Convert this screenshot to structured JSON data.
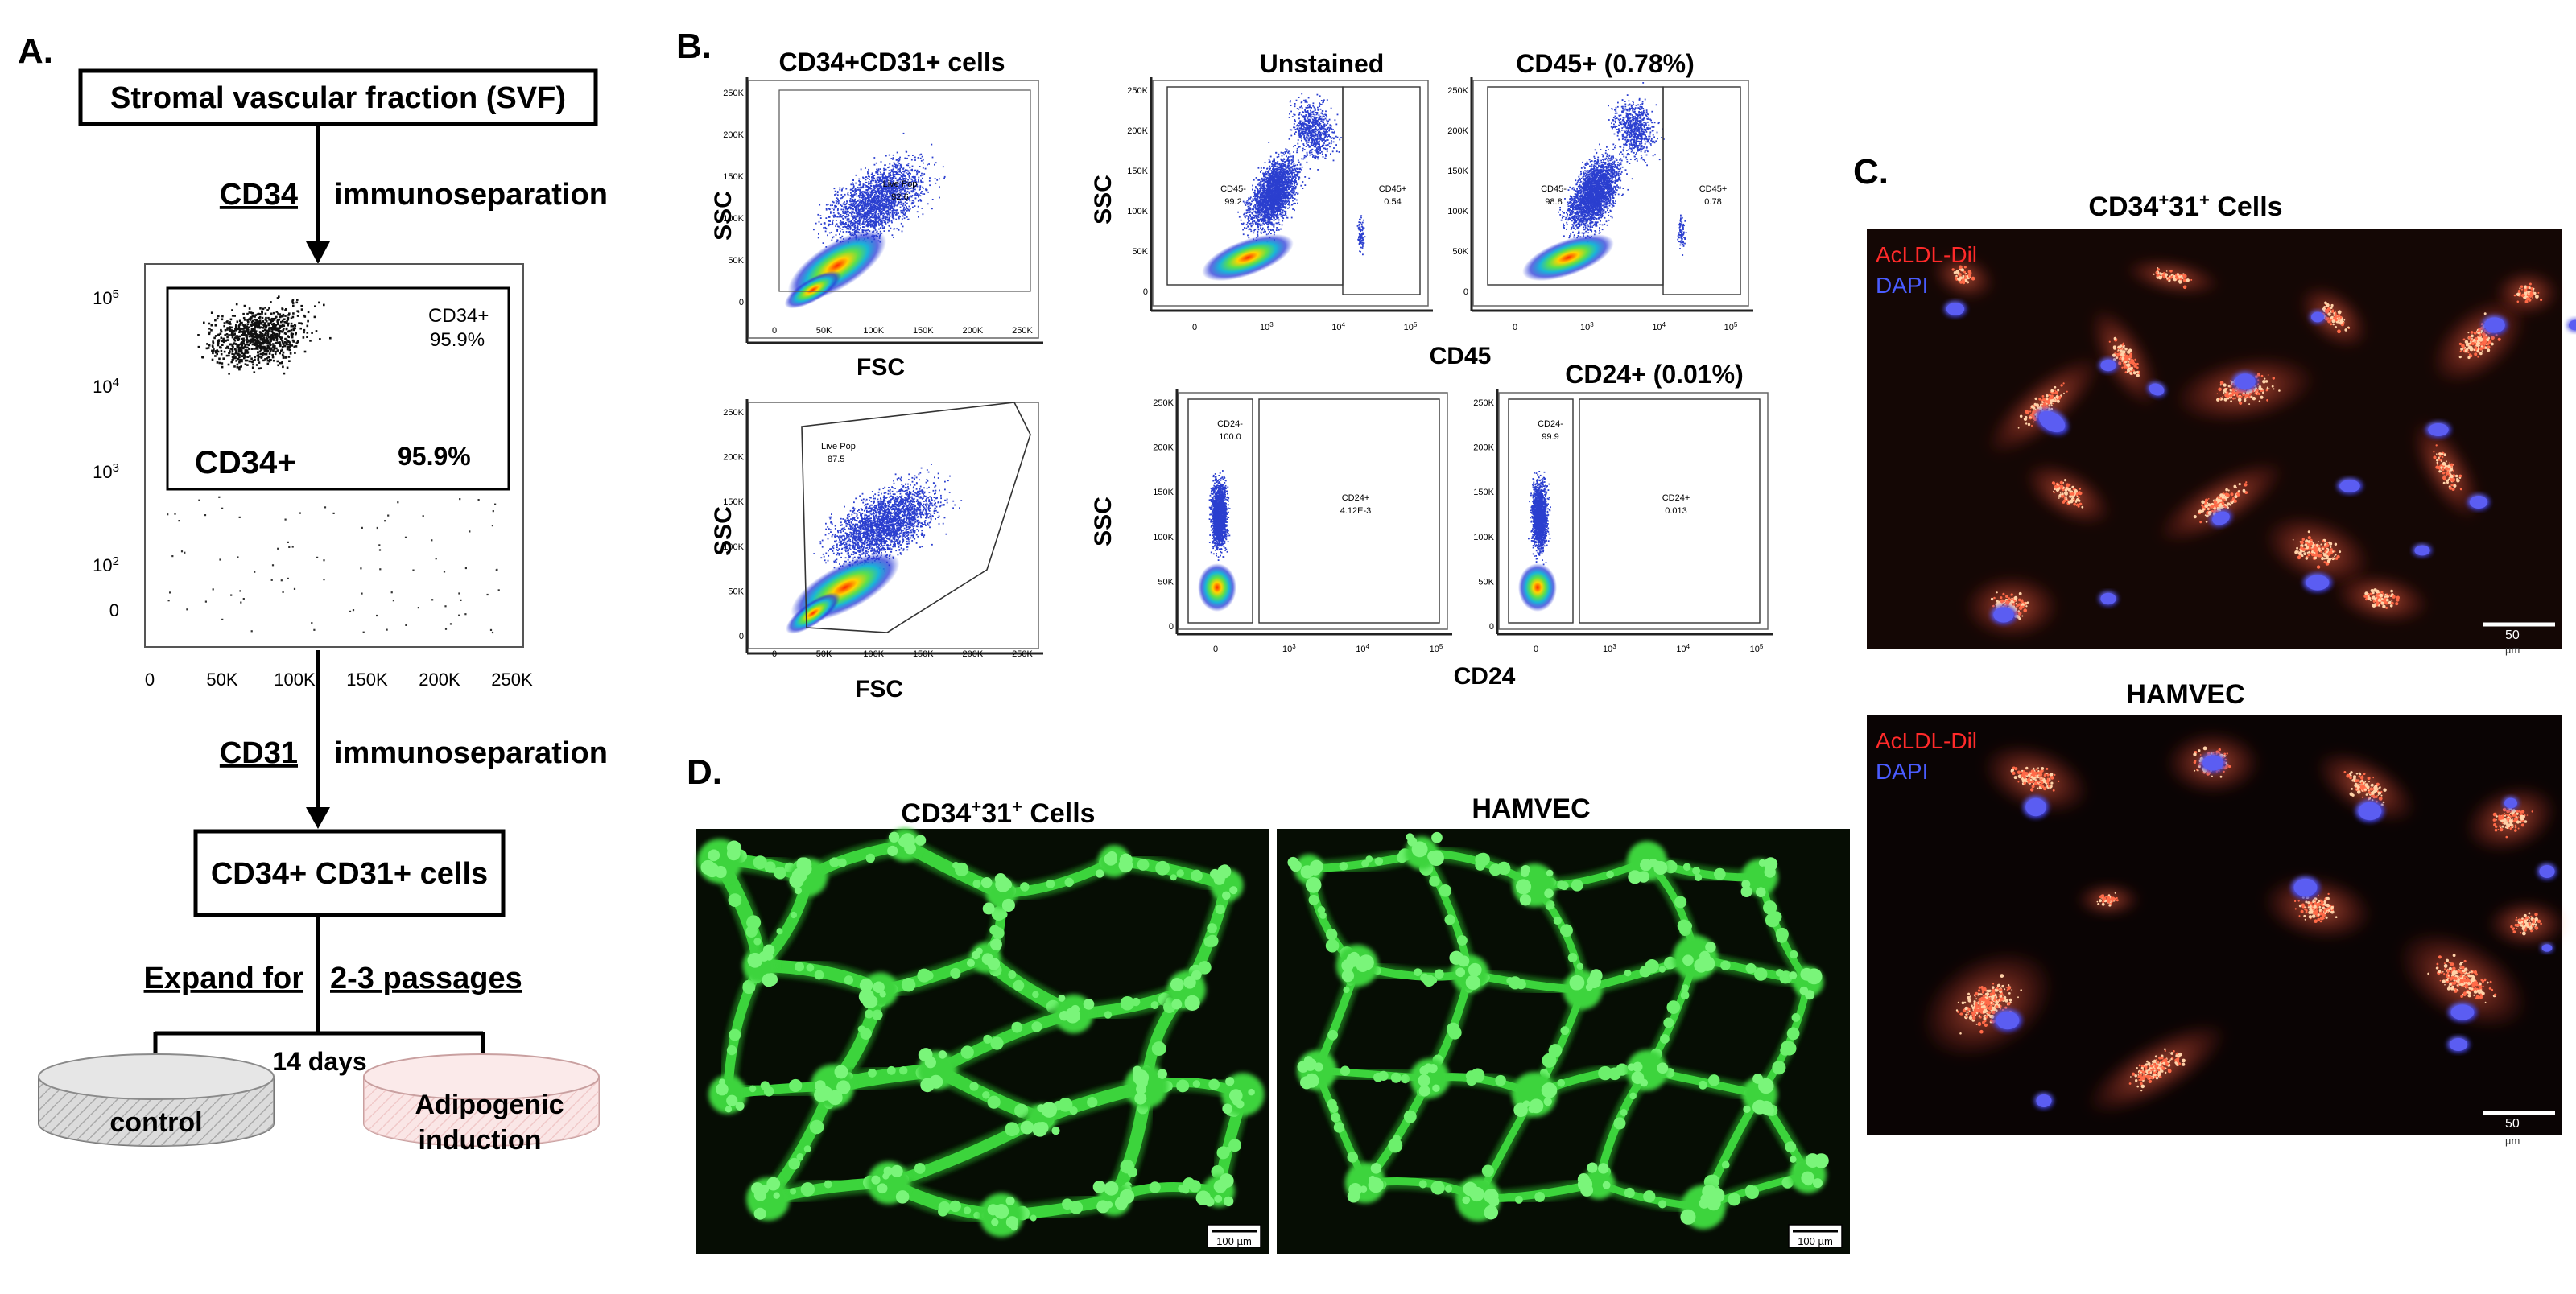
{
  "panelA": {
    "letter": "A.",
    "svf_box": "Stromal vascular fraction (SVF)",
    "step1_marker": "CD34",
    "step1_method": "immunoseparation",
    "plot": {
      "gate_name": "CD34+",
      "gate_pct": "95.9%",
      "big_label": "CD34+",
      "big_pct": "95.9%",
      "y_ticks": [
        "10",
        "10",
        "10",
        "10",
        "0"
      ],
      "y_exps": [
        "5",
        "4",
        "3",
        "2",
        ""
      ],
      "x_ticks": [
        "0",
        "50K",
        "100K",
        "150K",
        "200K",
        "250K"
      ]
    },
    "step2_marker": "CD31",
    "step2_method": "immunoseparation",
    "cells_box": "CD34+ CD31+ cells",
    "expand_a": "Expand for",
    "expand_b": "2-3 passages",
    "days": "14 days",
    "dish_control": "control",
    "dish_adipo_1": "Adipogenic",
    "dish_adipo_2": "induction"
  },
  "panelB": {
    "letter": "B.",
    "title_cells": "CD34+CD31+ cells",
    "title_unstained": "Unstained",
    "title_cd45": "CD45+ (0.78%)",
    "title_cd24": "CD24+ (0.01%)",
    "ssc": "SSC",
    "fsc": "FSC",
    "cd45_axis": "CD45",
    "cd24_axis": "CD24",
    "live_pop": "Live Pop",
    "live_pct_1": "92.6",
    "live_pct_2": "87.5",
    "cd45neg": "CD45-",
    "cd45pos": "CD45+",
    "cd45neg_unst": "99.2",
    "cd45pos_unst": "0.54",
    "cd45neg_stain": "98.8",
    "cd45pos_stain": "0.78",
    "cd24neg": "CD24-",
    "cd24pos": "CD24+",
    "cd24neg_unst": "100.0",
    "cd24pos_unst": "4.12E-3",
    "cd24neg_stain": "99.9",
    "cd24pos_stain": "0.013",
    "ssc_ticks": [
      "250K",
      "200K",
      "150K",
      "100K",
      "50K",
      "0"
    ],
    "fsc_ticks": [
      "0",
      "50K",
      "100K",
      "150K",
      "200K",
      "250K"
    ],
    "log_ticks": [
      "0",
      "10",
      "10",
      "10"
    ],
    "log_exps": [
      "",
      "3",
      "4",
      "5"
    ]
  },
  "panelC": {
    "letter": "C.",
    "title1_a": "CD34",
    "title1_sup1": "+",
    "title1_b": "31",
    "title1_sup2": "+",
    "title1_c": " Cells",
    "title2": "HAMVEC",
    "stain1": "AcLDL-Dil",
    "stain2": "DAPI",
    "scale": "50",
    "scale_unit": "µm"
  },
  "panelD": {
    "letter": "D.",
    "title1_a": "CD34",
    "title1_sup1": "+",
    "title1_b": "31",
    "title1_sup2": "+",
    "title1_c": " Cells",
    "title2": "HAMVEC",
    "scale": "100 µm"
  },
  "colors": {
    "stain_red": "#ff2a2a",
    "stain_blue": "#4a5cff",
    "tube_green": "#3cd43c",
    "dish_pink": "#f6d6d6"
  }
}
